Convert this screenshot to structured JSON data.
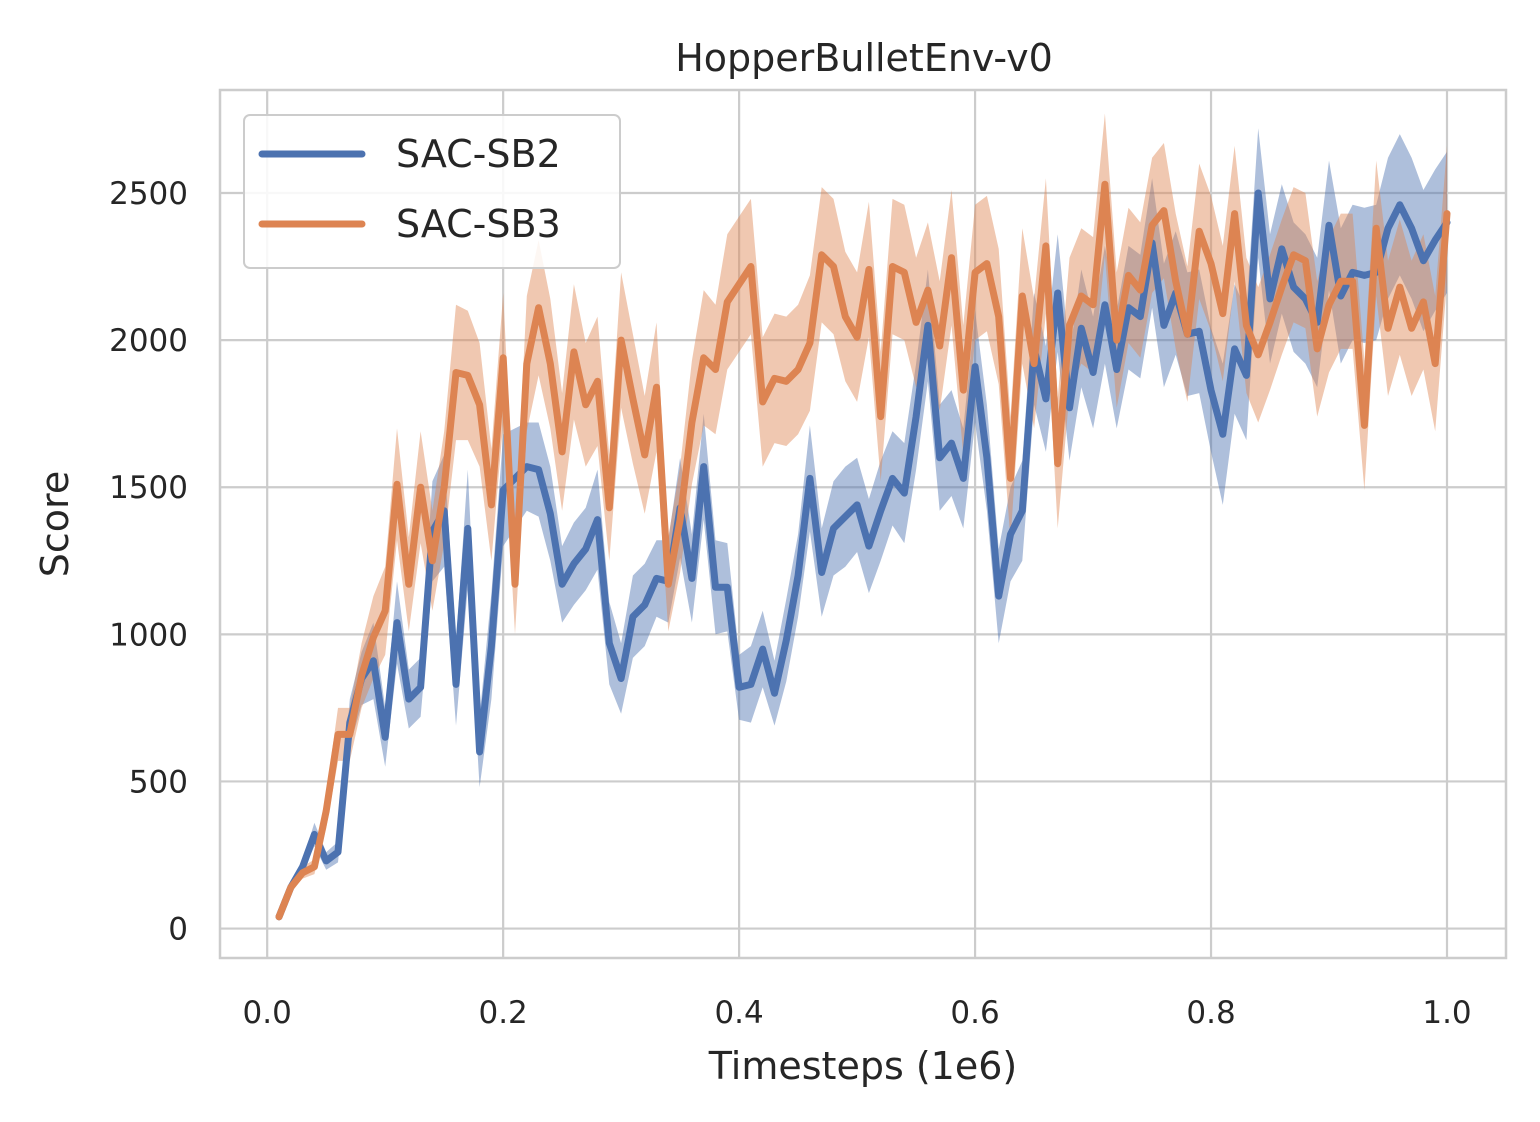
{
  "chart_data": {
    "type": "line",
    "title": "HopperBulletEnv-v0",
    "xlabel": "Timesteps (1e6)",
    "ylabel": "Score",
    "xlim": [
      -0.04,
      1.05
    ],
    "ylim": [
      -100,
      2850
    ],
    "x_ticks": [
      0.0,
      0.2,
      0.4,
      0.6,
      0.8,
      1.0
    ],
    "x_tick_labels": [
      "0.0",
      "0.2",
      "0.4",
      "0.6",
      "0.8",
      "1.0"
    ],
    "y_ticks": [
      0,
      500,
      1000,
      1500,
      2000,
      2500
    ],
    "y_tick_labels": [
      "0",
      "500",
      "1000",
      "1500",
      "2000",
      "2500"
    ],
    "grid": true,
    "legend_position": "top-left",
    "shaded_band": "confidence interval around each mean curve",
    "x": [
      0.01,
      0.02,
      0.03,
      0.04,
      0.05,
      0.06,
      0.07,
      0.08,
      0.09,
      0.1,
      0.11,
      0.12,
      0.13,
      0.14,
      0.15,
      0.16,
      0.17,
      0.18,
      0.19,
      0.2,
      0.21,
      0.22,
      0.23,
      0.24,
      0.25,
      0.26,
      0.27,
      0.28,
      0.29,
      0.3,
      0.31,
      0.32,
      0.33,
      0.34,
      0.35,
      0.36,
      0.37,
      0.38,
      0.39,
      0.4,
      0.41,
      0.42,
      0.43,
      0.44,
      0.45,
      0.46,
      0.47,
      0.48,
      0.49,
      0.5,
      0.51,
      0.52,
      0.53,
      0.54,
      0.55,
      0.56,
      0.57,
      0.58,
      0.59,
      0.6,
      0.61,
      0.62,
      0.63,
      0.64,
      0.65,
      0.66,
      0.67,
      0.68,
      0.69,
      0.7,
      0.71,
      0.72,
      0.73,
      0.74,
      0.75,
      0.76,
      0.77,
      0.78,
      0.79,
      0.8,
      0.81,
      0.82,
      0.83,
      0.84,
      0.85,
      0.86,
      0.87,
      0.88,
      0.89,
      0.9,
      0.91,
      0.92,
      0.93,
      0.94,
      0.95,
      0.96,
      0.97,
      0.98,
      0.99,
      1.0
    ],
    "series": [
      {
        "name": "SAC-SB2",
        "color": "#4c72b0",
        "values": [
          40,
          140,
          210,
          320,
          230,
          260,
          700,
          850,
          910,
          650,
          1040,
          780,
          820,
          1350,
          1420,
          830,
          1360,
          600,
          960,
          1490,
          1530,
          1570,
          1560,
          1410,
          1170,
          1240,
          1290,
          1390,
          970,
          850,
          1060,
          1100,
          1190,
          1180,
          1430,
          1190,
          1570,
          1160,
          1160,
          820,
          830,
          950,
          800,
          980,
          1200,
          1530,
          1210,
          1360,
          1400,
          1440,
          1300,
          1420,
          1530,
          1480,
          1740,
          2050,
          1600,
          1650,
          1530,
          1910,
          1600,
          1130,
          1340,
          1420,
          1970,
          1800,
          2160,
          1770,
          2040,
          1890,
          2120,
          1900,
          2110,
          2080,
          2330,
          2050,
          2160,
          2020,
          2030,
          1830,
          1680,
          1970,
          1880,
          2500,
          2140,
          2310,
          2180,
          2140,
          2060,
          2390,
          2150,
          2230,
          2220,
          2230,
          2380,
          2460,
          2380,
          2270,
          2340,
          2400
        ],
        "lower": [
          35,
          125,
          190,
          280,
          200,
          225,
          620,
          760,
          780,
          550,
          900,
          680,
          720,
          1180,
          1230,
          690,
          1160,
          480,
          780,
          1300,
          1360,
          1420,
          1400,
          1250,
          1040,
          1100,
          1150,
          1220,
          830,
          730,
          920,
          960,
          1060,
          1040,
          1260,
          1040,
          1390,
          1000,
          1010,
          710,
          700,
          820,
          690,
          840,
          1060,
          1350,
          1060,
          1200,
          1230,
          1280,
          1140,
          1250,
          1370,
          1310,
          1560,
          1860,
          1420,
          1470,
          1360,
          1720,
          1420,
          970,
          1180,
          1250,
          1780,
          1620,
          1960,
          1590,
          1840,
          1700,
          1920,
          1700,
          1900,
          1870,
          2110,
          1840,
          1950,
          1810,
          1820,
          1620,
          1440,
          1750,
          1660,
          2280,
          1920,
          2090,
          1960,
          1920,
          1840,
          2170,
          1920,
          2000,
          1990,
          2000,
          2140,
          2220,
          2140,
          2030,
          2100,
          2160
        ],
        "upper": [
          45,
          155,
          230,
          360,
          260,
          295,
          780,
          940,
          1040,
          750,
          1180,
          880,
          920,
          1520,
          1610,
          970,
          1560,
          720,
          1140,
          1680,
          1700,
          1720,
          1720,
          1570,
          1300,
          1380,
          1430,
          1560,
          1110,
          970,
          1200,
          1240,
          1320,
          1320,
          1600,
          1340,
          1750,
          1320,
          1310,
          930,
          960,
          1080,
          910,
          1120,
          1340,
          1710,
          1360,
          1520,
          1570,
          1600,
          1460,
          1590,
          1690,
          1650,
          1920,
          2240,
          1780,
          1830,
          1700,
          2100,
          1780,
          1290,
          1500,
          1590,
          2160,
          1980,
          2360,
          1950,
          2240,
          2080,
          2320,
          2100,
          2320,
          2290,
          2550,
          2260,
          2370,
          2230,
          2240,
          2040,
          1920,
          2190,
          2100,
          2720,
          2360,
          2530,
          2400,
          2360,
          2280,
          2610,
          2380,
          2460,
          2450,
          2460,
          2620,
          2700,
          2620,
          2510,
          2580,
          2640
        ]
      },
      {
        "name": "SAC-SB3",
        "color": "#dd8452",
        "values": [
          40,
          140,
          190,
          210,
          400,
          660,
          660,
          860,
          990,
          1080,
          1510,
          1170,
          1500,
          1250,
          1500,
          1890,
          1880,
          1780,
          1440,
          1940,
          1170,
          1920,
          2110,
          1920,
          1620,
          1960,
          1780,
          1860,
          1430,
          2000,
          1800,
          1610,
          1840,
          1170,
          1390,
          1720,
          1940,
          1900,
          2130,
          2190,
          2250,
          1790,
          1870,
          1860,
          1900,
          1990,
          2290,
          2250,
          2080,
          2010,
          2240,
          1740,
          2250,
          2230,
          2060,
          2170,
          1980,
          2280,
          1830,
          2230,
          2260,
          2080,
          1530,
          2150,
          1920,
          2320,
          1580,
          2050,
          2150,
          2120,
          2530,
          2000,
          2220,
          2170,
          2390,
          2440,
          2200,
          2020,
          2370,
          2260,
          2090,
          2430,
          2050,
          1950,
          2060,
          2180,
          2290,
          2270,
          1970,
          2120,
          2200,
          2200,
          1710,
          2380,
          2040,
          2180,
          2040,
          2130,
          1920,
          2430
        ],
        "lower": [
          35,
          125,
          170,
          185,
          340,
          570,
          570,
          750,
          850,
          930,
          1320,
          1010,
          1310,
          1080,
          1310,
          1660,
          1660,
          1570,
          1250,
          1720,
          1000,
          1690,
          1880,
          1700,
          1420,
          1730,
          1570,
          1640,
          1250,
          1770,
          1580,
          1410,
          1620,
          1010,
          1210,
          1510,
          1710,
          1680,
          1900,
          1960,
          2020,
          1570,
          1650,
          1640,
          1680,
          1760,
          2060,
          2020,
          1860,
          1790,
          2010,
          1520,
          2020,
          2000,
          1840,
          1940,
          1760,
          2050,
          1610,
          2000,
          2030,
          1850,
          1320,
          1920,
          1700,
          2090,
          1360,
          1820,
          1920,
          1890,
          2290,
          1770,
          1990,
          1940,
          2160,
          2210,
          1970,
          1790,
          2140,
          2030,
          1860,
          2200,
          1820,
          1720,
          1830,
          1950,
          2060,
          2040,
          1740,
          1890,
          1970,
          1970,
          1490,
          2150,
          1810,
          1950,
          1810,
          1900,
          1690,
          2200
        ],
        "upper": [
          45,
          155,
          210,
          235,
          460,
          750,
          750,
          970,
          1130,
          1230,
          1700,
          1330,
          1690,
          1420,
          1690,
          2120,
          2100,
          1990,
          1630,
          2160,
          1340,
          2150,
          2340,
          2140,
          1820,
          2190,
          1990,
          2080,
          1610,
          2230,
          2020,
          1810,
          2060,
          1330,
          1570,
          1930,
          2170,
          2120,
          2360,
          2420,
          2480,
          2010,
          2090,
          2080,
          2120,
          2220,
          2520,
          2480,
          2300,
          2230,
          2470,
          1960,
          2480,
          2460,
          2280,
          2400,
          2200,
          2510,
          2050,
          2460,
          2490,
          2310,
          1740,
          2380,
          2140,
          2550,
          1800,
          2280,
          2380,
          2350,
          2770,
          2230,
          2450,
          2400,
          2620,
          2670,
          2430,
          2250,
          2600,
          2490,
          2320,
          2660,
          2280,
          2180,
          2290,
          2410,
          2520,
          2500,
          2200,
          2350,
          2430,
          2430,
          1930,
          2610,
          2270,
          2410,
          2270,
          2360,
          2150,
          2660
        ]
      }
    ]
  }
}
